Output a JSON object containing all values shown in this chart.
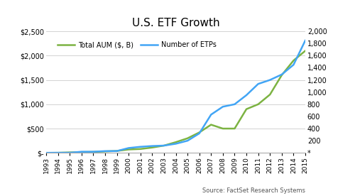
{
  "title": "U.S. ETF Growth",
  "years": [
    1993,
    1994,
    1995,
    1996,
    1997,
    1998,
    1999,
    2000,
    2001,
    2002,
    2003,
    2004,
    2005,
    2006,
    2007,
    2008,
    2009,
    2010,
    2011,
    2012,
    2013,
    2014,
    2015
  ],
  "aum": [
    0,
    2,
    10,
    16,
    20,
    30,
    40,
    70,
    80,
    110,
    150,
    220,
    300,
    420,
    580,
    500,
    500,
    900,
    1000,
    1200,
    1600,
    1900,
    2100
  ],
  "etps": [
    1,
    2,
    2,
    19,
    19,
    29,
    30,
    80,
    100,
    113,
    120,
    150,
    200,
    320,
    630,
    760,
    800,
    950,
    1135,
    1200,
    1290,
    1450,
    1850
  ],
  "aum_color": "#7CB342",
  "etps_color": "#42A5F5",
  "left_ylim": [
    0,
    2500
  ],
  "right_ylim": [
    0,
    2000
  ],
  "left_yticks": [
    0,
    500,
    1000,
    1500,
    2000,
    2500
  ],
  "right_yticks": [
    0,
    200,
    400,
    600,
    800,
    1000,
    1200,
    1400,
    1600,
    1800,
    2000
  ],
  "left_ytick_labels": [
    "$-",
    "$500",
    "$1,000",
    "$1,500",
    "$2,000",
    "$2,500"
  ],
  "right_ytick_labels": [
    "*",
    "200",
    "400",
    "600",
    "800",
    "1,000",
    "1,200",
    "1,400",
    "1,600",
    "1,800",
    "2,000"
  ],
  "legend_aum": "Total AUM ($, B)",
  "legend_etps": "Number of ETPs",
  "source": "Source: FactSet Research Systems",
  "bg_color": "#FFFFFF",
  "grid_color": "#CCCCCC",
  "line_width": 1.8
}
